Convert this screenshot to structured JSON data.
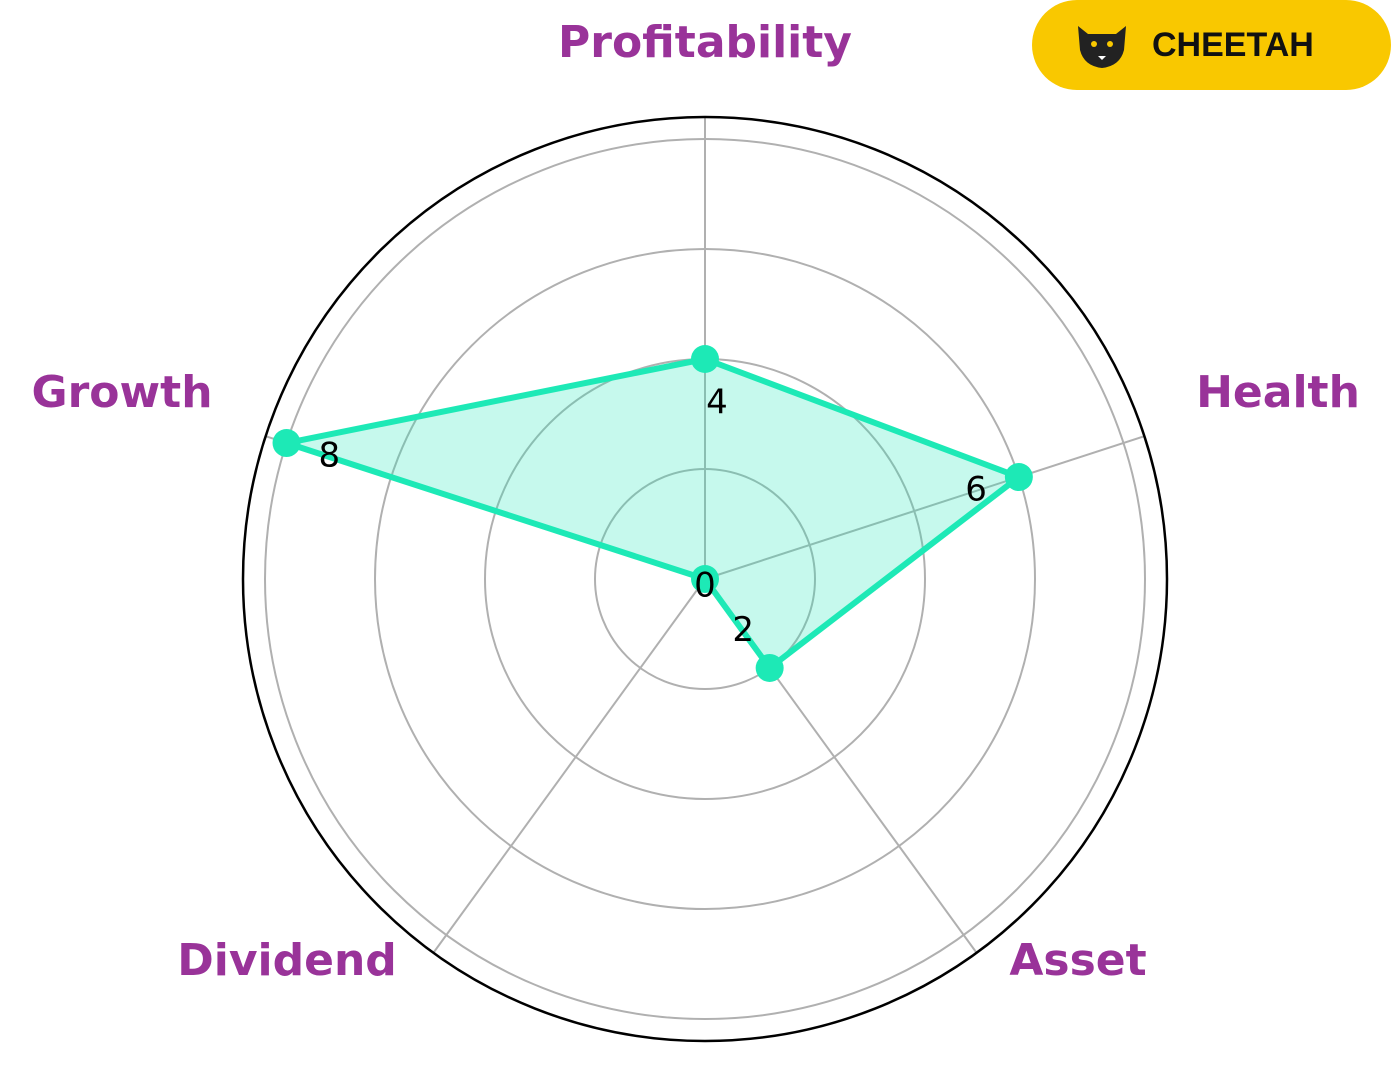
{
  "chart_data": {
    "type": "radar",
    "categories": [
      "Profitability",
      "Health",
      "Asset",
      "Dividend",
      "Growth"
    ],
    "values": [
      4,
      6,
      2,
      0,
      8
    ],
    "color": "#1de9b6",
    "ylim": [
      0,
      8.4
    ],
    "yticks": [
      2,
      4,
      6,
      8
    ],
    "grid": true
  },
  "badge": {
    "text": "CHEETAH"
  }
}
